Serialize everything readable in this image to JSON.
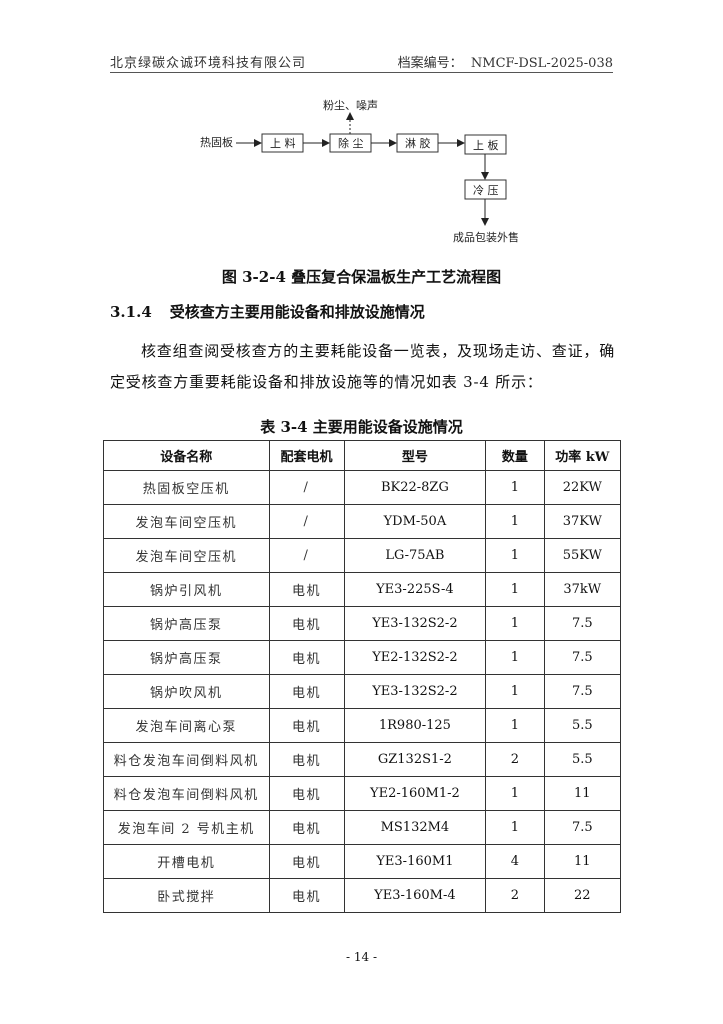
{
  "header": {
    "company": "北京绿碳众诚环境科技有限公司",
    "doc_no_label": "档案编号：",
    "doc_no": "NMCF-DSL-2025-038"
  },
  "flow": {
    "input": "热固板",
    "steps": [
      "上 料",
      "除 尘",
      "淋 胶",
      "上 板",
      "冷 压"
    ],
    "emission": "粉尘、噪声",
    "output": "成品包装外售"
  },
  "figure_caption": "图 3-2-4 叠压复合保温板生产工艺流程图",
  "section": {
    "number": "3.1.4",
    "title": "受核查方主要用能设备和排放设施情况"
  },
  "paragraph": "核查组查阅受核查方的主要耗能设备一览表，及现场走访、查证，确定受核查方重要耗能设备和排放设施等的情况如表 3-4 所示：",
  "table_caption": "表 3-4  主要用能设备设施情况",
  "table": {
    "headers": [
      "设备名称",
      "配套电机",
      "型号",
      "数量",
      "功率 kW"
    ],
    "rows": [
      [
        "热固板空压机",
        "/",
        "BK22-8ZG",
        "1",
        "22KW"
      ],
      [
        "发泡车间空压机",
        "/",
        "YDM-50A",
        "1",
        "37KW"
      ],
      [
        "发泡车间空压机",
        "/",
        "LG-75AB",
        "1",
        "55KW"
      ],
      [
        "锅炉引风机",
        "电机",
        "YE3-225S-4",
        "1",
        "37kW"
      ],
      [
        "锅炉高压泵",
        "电机",
        "YE3-132S2-2",
        "1",
        "7.5"
      ],
      [
        "锅炉高压泵",
        "电机",
        "YE2-132S2-2",
        "1",
        "7.5"
      ],
      [
        "锅炉吹风机",
        "电机",
        "YE3-132S2-2",
        "1",
        "7.5"
      ],
      [
        "发泡车间离心泵",
        "电机",
        "1R980-125",
        "1",
        "5.5"
      ],
      [
        "料仓发泡车间倒料风机",
        "电机",
        "GZ132S1-2",
        "2",
        "5.5"
      ],
      [
        "料仓发泡车间倒料风机",
        "电机",
        "YE2-160M1-2",
        "1",
        "11"
      ],
      [
        "发泡车间 2 号机主机",
        "电机",
        "MS132M4",
        "1",
        "7.5"
      ],
      [
        "开槽电机",
        "电机",
        "YE3-160M1",
        "4",
        "11"
      ],
      [
        "卧式搅拌",
        "电机",
        "YE3-160M-4",
        "2",
        "22"
      ]
    ]
  },
  "page_number": "- 14 -"
}
